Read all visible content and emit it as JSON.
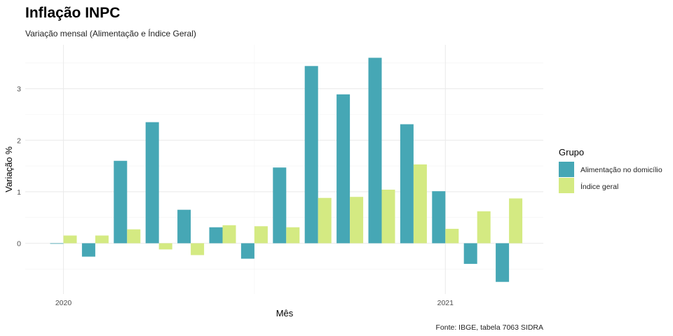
{
  "chart_data": {
    "type": "bar",
    "title": "Inflação INPC",
    "subtitle": "Variação mensal (Alimentação e Índice Geral)",
    "xlabel": "Mês",
    "ylabel": "Variação %",
    "caption": "Fonte: IBGE, tabela 7063 SIDRA",
    "legend_title": "Grupo",
    "legend_position": "right",
    "grid": true,
    "ylim": [
      -0.75,
      3.6
    ],
    "y_ticks": [
      "0",
      "1",
      "2",
      "3"
    ],
    "x_tick_labels": [
      "2020",
      "2021"
    ],
    "categories": [
      "2020-01",
      "2020-02",
      "2020-03",
      "2020-04",
      "2020-05",
      "2020-06",
      "2020-07",
      "2020-08",
      "2020-09",
      "2020-10",
      "2020-11",
      "2020-12",
      "2021-01",
      "2021-02",
      "2021-03"
    ],
    "series": [
      {
        "name": "Alimentação no domicílio",
        "color": "#46a7b5",
        "values": [
          -0.01,
          -0.26,
          1.6,
          2.35,
          0.65,
          0.31,
          -0.3,
          1.47,
          3.44,
          2.89,
          3.6,
          2.31,
          1.01,
          -0.4,
          -0.75
        ]
      },
      {
        "name": "Índice geral",
        "color": "#d4ea82",
        "values": [
          0.15,
          0.15,
          0.27,
          -0.12,
          -0.23,
          0.35,
          0.33,
          0.31,
          0.88,
          0.9,
          1.04,
          1.53,
          0.28,
          0.62,
          0.87
        ]
      }
    ]
  }
}
